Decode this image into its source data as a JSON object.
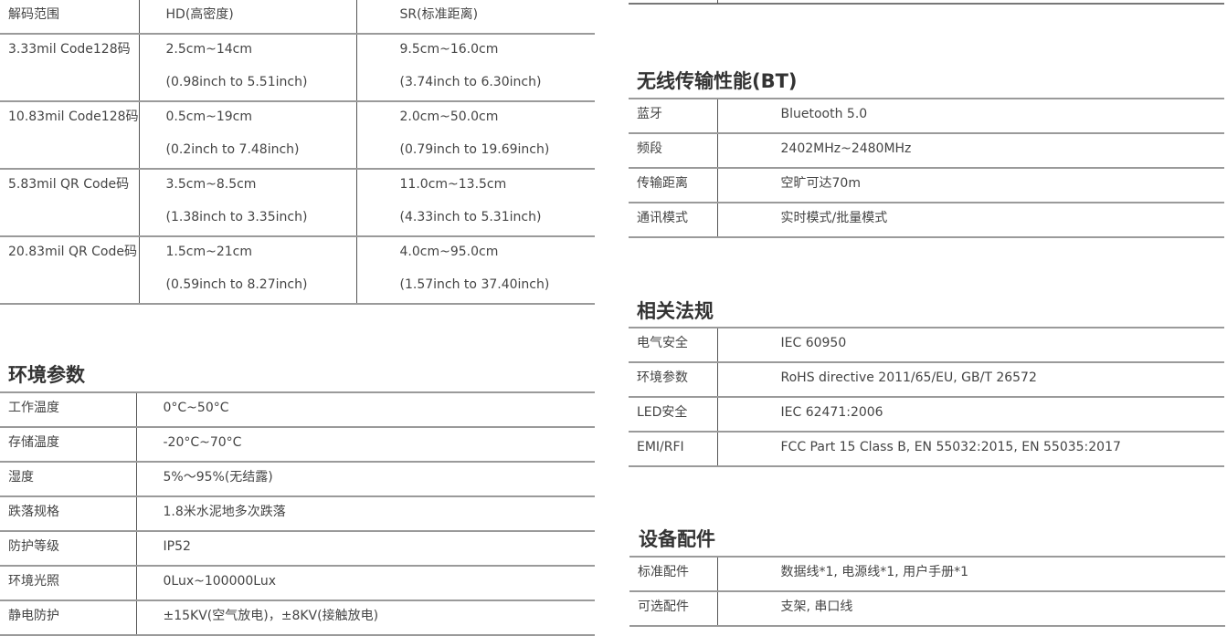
{
  "decode_range": {
    "headers": [
      "解码范围",
      "HD(高密度)",
      "SR(标准距离)"
    ],
    "rows": [
      {
        "label": "3.33mil Code128码",
        "hd": [
          "2.5cm~14cm",
          "(0.98inch to 5.51inch)"
        ],
        "sr": [
          "9.5cm~16.0cm",
          "(3.74inch to 6.30inch)"
        ]
      },
      {
        "label": "10.83mil Code128码",
        "hd": [
          "0.5cm~19cm",
          "(0.2inch to 7.48inch)"
        ],
        "sr": [
          "2.0cm~50.0cm",
          "(0.79inch to 19.69inch)"
        ]
      },
      {
        "label": "5.83mil QR Code码",
        "hd": [
          "3.5cm~8.5cm",
          "(1.38inch to 3.35inch)"
        ],
        "sr": [
          "11.0cm~13.5cm",
          "(4.33inch to 5.31inch)"
        ]
      },
      {
        "label": "20.83mil QR Code码",
        "hd": [
          "1.5cm~21cm",
          "(0.59inch to 8.27inch)"
        ],
        "sr": [
          "4.0cm~95.0cm",
          "(1.57inch to 37.40inch)"
        ]
      }
    ]
  },
  "environment": {
    "title": "环境参数",
    "rows": [
      {
        "label": "工作温度",
        "value": "0°C~50°C"
      },
      {
        "label": "存储温度",
        "value": "-20°C~70°C"
      },
      {
        "label": "湿度",
        "value": "5%～95%(无结露)"
      },
      {
        "label": "跌落规格",
        "value": "1.8米水泥地多次跌落"
      },
      {
        "label": "防护等级",
        "value": "IP52"
      },
      {
        "label": "环境光照",
        "value": "0Lux~100000Lux"
      },
      {
        "label": "静电防护",
        "value": "±15KV(空气放电)，±8KV(接触放电)"
      }
    ]
  },
  "wireless": {
    "title": "无线传输性能(BT)",
    "rows": [
      {
        "label": "蓝牙",
        "value": "Bluetooth 5.0"
      },
      {
        "label": "频段",
        "value": "2402MHz~2480MHz"
      },
      {
        "label": "传输距离",
        "value": "空旷可达70m"
      },
      {
        "label": "通讯模式",
        "value": "实时模式/批量模式"
      }
    ]
  },
  "regulations": {
    "title": "相关法规",
    "rows": [
      {
        "label": "电气安全",
        "value": "IEC 60950"
      },
      {
        "label": "环境参数",
        "value": "RoHS directive 2011/65/EU, GB/T 26572"
      },
      {
        "label": "LED安全",
        "value": "IEC 62471:2006"
      },
      {
        "label": "EMI/RFI",
        "value": "FCC Part 15 Class B, EN 55032:2015, EN 55035:2017"
      }
    ]
  },
  "accessories": {
    "title": "设备配件",
    "rows": [
      {
        "label": "标准配件",
        "value": "数据线*1, 电源线*1, 用户手册*1"
      },
      {
        "label": "可选配件",
        "value": "支架, 串口线"
      }
    ]
  }
}
